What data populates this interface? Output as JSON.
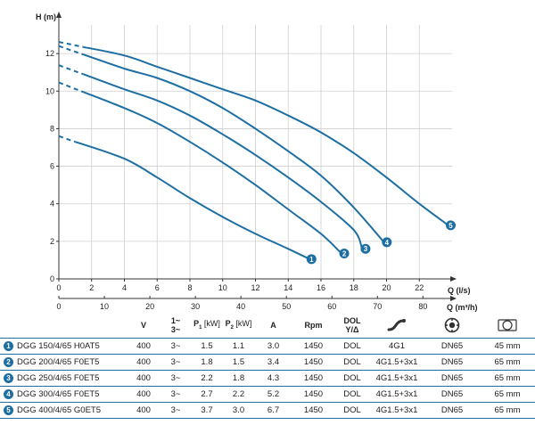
{
  "chart_data": {
    "type": "line",
    "ylabel": "H (m)",
    "xlabel_primary": "Q (l/s)",
    "xlabel_secondary": "Q (m³/h)",
    "xlim": [
      0,
      24
    ],
    "ylim": [
      0,
      14
    ],
    "y_ticks": [
      0,
      2,
      4,
      6,
      8,
      10,
      12
    ],
    "x_ticks_ls": [
      0,
      2,
      4,
      6,
      8,
      10,
      12,
      14,
      16,
      18,
      20,
      22
    ],
    "x_ticks_m3h": [
      0,
      10,
      20,
      30,
      40,
      50,
      60,
      70,
      80
    ],
    "grid": true,
    "series": [
      {
        "name": "1",
        "dashed_x": [
          0,
          1
        ],
        "x": [
          1,
          4,
          6,
          8,
          10,
          12,
          14,
          15.2
        ],
        "y": [
          7.3,
          6.4,
          5.4,
          4.3,
          3.3,
          2.4,
          1.6,
          1.1
        ]
      },
      {
        "name": "2",
        "dashed_x": [
          0,
          1.5
        ],
        "x": [
          1.5,
          4,
          6,
          8,
          10,
          12,
          14,
          16,
          17.2
        ],
        "y": [
          9.95,
          9.1,
          8.3,
          7.3,
          6.2,
          5.0,
          3.7,
          2.4,
          1.4
        ]
      },
      {
        "name": "3",
        "dashed_x": [
          0,
          1.5
        ],
        "x": [
          1.5,
          4,
          6,
          8,
          10,
          12,
          14,
          16,
          18,
          18.5
        ],
        "y": [
          10.9,
          10.1,
          9.5,
          8.7,
          7.7,
          6.6,
          5.4,
          4.1,
          2.6,
          1.65
        ]
      },
      {
        "name": "4",
        "dashed_x": [
          0,
          1.5
        ],
        "x": [
          1.5,
          4,
          6,
          8,
          10,
          12,
          14,
          16,
          18,
          19.8
        ],
        "y": [
          11.95,
          11.2,
          10.7,
          10.0,
          9.1,
          8.0,
          6.8,
          5.5,
          3.8,
          2.0
        ]
      },
      {
        "name": "5",
        "dashed_x": [
          0,
          1.5
        ],
        "x": [
          1.5,
          4,
          6,
          8,
          10,
          12,
          14,
          16,
          18,
          20,
          22,
          23.7
        ],
        "y": [
          12.35,
          11.9,
          11.3,
          10.7,
          10.1,
          9.5,
          8.7,
          7.8,
          6.7,
          5.4,
          4.0,
          2.9
        ]
      }
    ]
  },
  "table": {
    "headers": {
      "v": "V",
      "phase_top": "1~",
      "phase_bottom": "3~",
      "p1": "P",
      "p1_sub": "1",
      "p1_unit": " [kW]",
      "p2": "P",
      "p2_sub": "2",
      "p2_unit": " [kW]",
      "a": "A",
      "rpm": "Rpm",
      "dol_top": "DOL",
      "dol_bottom": "Y/Δ",
      "cable_icon": "cable-icon",
      "flange_icon": "flange-icon",
      "passage_icon": "passage-icon"
    },
    "rows": [
      {
        "num": "1",
        "model": "DGG 150/4/65 H0AT5",
        "v": "400",
        "phase": "3~",
        "p1": "1.5",
        "p2": "1.1",
        "a": "3.0",
        "rpm": "1450",
        "start": "DOL",
        "cable": "4G1",
        "flange": "DN65",
        "passage": "45 mm"
      },
      {
        "num": "2",
        "model": "DGG 200/4/65 F0ET5",
        "v": "400",
        "phase": "3~",
        "p1": "1.8",
        "p2": "1.5",
        "a": "3.4",
        "rpm": "1450",
        "start": "DOL",
        "cable": "4G1.5+3x1",
        "flange": "DN65",
        "passage": "65 mm"
      },
      {
        "num": "3",
        "model": "DGG 250/4/65 F0ET5",
        "v": "400",
        "phase": "3~",
        "p1": "2.2",
        "p2": "1.8",
        "a": "4.3",
        "rpm": "1450",
        "start": "DOL",
        "cable": "4G1.5+3x1",
        "flange": "DN65",
        "passage": "65 mm"
      },
      {
        "num": "4",
        "model": "DGG 300/4/65 F0ET5",
        "v": "400",
        "phase": "3~",
        "p1": "2.7",
        "p2": "2.2",
        "a": "5.2",
        "rpm": "1450",
        "start": "DOL",
        "cable": "4G1.5+3x1",
        "flange": "DN65",
        "passage": "65 mm"
      },
      {
        "num": "5",
        "model": "DGG 400/4/65 G0ET5",
        "v": "400",
        "phase": "3~",
        "p1": "3.7",
        "p2": "3.0",
        "a": "6.7",
        "rpm": "1450",
        "start": "DOL",
        "cable": "4G1.5+3x1",
        "flange": "DN65",
        "passage": "65 mm"
      }
    ]
  },
  "colors": {
    "curve": "#1d6fa3",
    "grid": "#cfcfcf",
    "axis": "#333333"
  }
}
